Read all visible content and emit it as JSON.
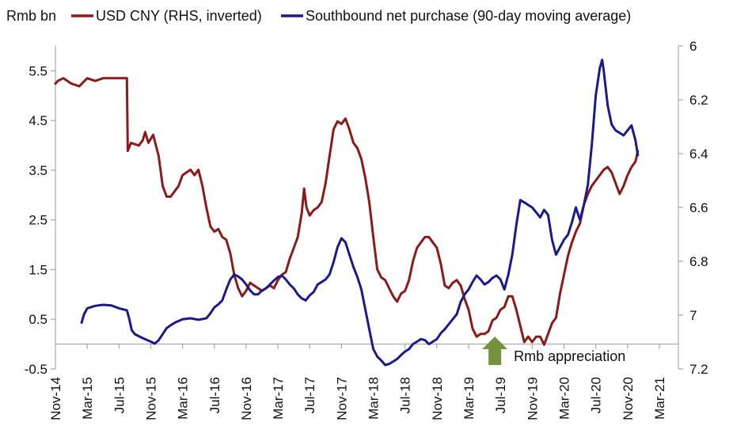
{
  "chart_data": {
    "type": "line",
    "unit_label": "Rmb bn",
    "legend": [
      {
        "name": "USD CNY (RHS, inverted)",
        "color": "#8b1a1a"
      },
      {
        "name": "Southbound net purchase (90-day moving average)",
        "color": "#1a1a8c"
      }
    ],
    "legend_placement": "top",
    "grid": false,
    "x_ticks": [
      "Nov-14",
      "Mar-15",
      "Jul-15",
      "Nov-15",
      "Mar-16",
      "Jul-16",
      "Nov-16",
      "Mar-17",
      "Jul-17",
      "Nov-17",
      "Mar-18",
      "Jul-18",
      "Nov-18",
      "Mar-19",
      "Jul-19",
      "Nov-19",
      "Mar-20",
      "Jul-20",
      "Nov-20",
      "Mar-21"
    ],
    "y_left": {
      "ylim": [
        -0.5,
        6.0
      ],
      "ticks": [
        {
          "value": 5.5,
          "label": "5.5"
        },
        {
          "value": 4.5,
          "label": "4.5"
        },
        {
          "value": 3.5,
          "label": "3.5"
        },
        {
          "value": 2.5,
          "label": "2.5"
        },
        {
          "value": 1.5,
          "label": "1.5"
        },
        {
          "value": 0.5,
          "label": "0.5"
        },
        {
          "value": -0.5,
          "label": "-0.5",
          "color": "#d62020"
        }
      ]
    },
    "y_right": {
      "ylim": [
        6.0,
        7.2
      ],
      "inverted": true,
      "ticks": [
        {
          "value": 6.0,
          "label": "6"
        },
        {
          "value": 6.2,
          "label": "6.2"
        },
        {
          "value": 6.4,
          "label": "6.4"
        },
        {
          "value": 6.6,
          "label": "6.6"
        },
        {
          "value": 6.8,
          "label": "6.8"
        },
        {
          "value": 7.0,
          "label": "7"
        },
        {
          "value": 7.2,
          "label": "7.2"
        }
      ]
    },
    "series": [
      {
        "name": "USD CNY (RHS, inverted)",
        "axis": "right",
        "color": "#8b1a1a",
        "points": [
          [
            0.0,
            6.14
          ],
          [
            0.3,
            6.13
          ],
          [
            1.0,
            6.12
          ],
          [
            2.0,
            6.14
          ],
          [
            3.0,
            6.15
          ],
          [
            4.0,
            6.12
          ],
          [
            5.0,
            6.13
          ],
          [
            6.0,
            6.12
          ],
          [
            8.0,
            6.12
          ],
          [
            9.0,
            6.12
          ],
          [
            9.1,
            6.39
          ],
          [
            9.5,
            6.36
          ],
          [
            10.5,
            6.37
          ],
          [
            11.0,
            6.35
          ],
          [
            11.3,
            6.32
          ],
          [
            11.7,
            6.36
          ],
          [
            12.3,
            6.33
          ],
          [
            13.0,
            6.41
          ],
          [
            13.5,
            6.52
          ],
          [
            14.0,
            6.56
          ],
          [
            14.5,
            6.56
          ],
          [
            15.0,
            6.54
          ],
          [
            15.5,
            6.52
          ],
          [
            16.0,
            6.48
          ],
          [
            16.5,
            6.47
          ],
          [
            17.0,
            6.46
          ],
          [
            17.5,
            6.48
          ],
          [
            18.0,
            6.46
          ],
          [
            18.5,
            6.52
          ],
          [
            19.0,
            6.6
          ],
          [
            19.5,
            6.67
          ],
          [
            20.0,
            6.69
          ],
          [
            20.5,
            6.68
          ],
          [
            21.0,
            6.71
          ],
          [
            21.5,
            6.72
          ],
          [
            22.0,
            6.77
          ],
          [
            22.5,
            6.85
          ],
          [
            23.0,
            6.9
          ],
          [
            23.5,
            6.93
          ],
          [
            24.0,
            6.91
          ],
          [
            24.5,
            6.88
          ],
          [
            25.0,
            6.89
          ],
          [
            25.5,
            6.9
          ],
          [
            26.0,
            6.91
          ],
          [
            26.5,
            6.9
          ],
          [
            27.0,
            6.89
          ],
          [
            27.5,
            6.9
          ],
          [
            28.0,
            6.87
          ],
          [
            28.5,
            6.85
          ],
          [
            29.0,
            6.84
          ],
          [
            29.5,
            6.79
          ],
          [
            30.0,
            6.75
          ],
          [
            30.5,
            6.71
          ],
          [
            31.0,
            6.62
          ],
          [
            31.3,
            6.53
          ],
          [
            31.6,
            6.6
          ],
          [
            32.0,
            6.63
          ],
          [
            32.5,
            6.61
          ],
          [
            33.0,
            6.6
          ],
          [
            33.5,
            6.58
          ],
          [
            34.0,
            6.51
          ],
          [
            34.5,
            6.41
          ],
          [
            35.0,
            6.31
          ],
          [
            35.5,
            6.28
          ],
          [
            36.0,
            6.29
          ],
          [
            36.5,
            6.27
          ],
          [
            37.0,
            6.31
          ],
          [
            37.5,
            6.36
          ],
          [
            38.0,
            6.38
          ],
          [
            38.5,
            6.42
          ],
          [
            39.0,
            6.49
          ],
          [
            39.5,
            6.58
          ],
          [
            40.0,
            6.71
          ],
          [
            40.5,
            6.83
          ],
          [
            41.0,
            6.86
          ],
          [
            41.5,
            6.87
          ],
          [
            42.0,
            6.9
          ],
          [
            42.5,
            6.93
          ],
          [
            43.0,
            6.95
          ],
          [
            43.5,
            6.92
          ],
          [
            44.0,
            6.91
          ],
          [
            44.5,
            6.87
          ],
          [
            45.0,
            6.8
          ],
          [
            45.5,
            6.75
          ],
          [
            46.0,
            6.73
          ],
          [
            46.5,
            6.71
          ],
          [
            47.0,
            6.71
          ],
          [
            47.5,
            6.73
          ],
          [
            48.0,
            6.75
          ],
          [
            48.5,
            6.81
          ],
          [
            49.0,
            6.89
          ],
          [
            49.5,
            6.9
          ],
          [
            50.0,
            6.88
          ],
          [
            50.5,
            6.87
          ],
          [
            51.0,
            6.89
          ],
          [
            51.5,
            6.94
          ],
          [
            52.0,
            6.98
          ],
          [
            52.5,
            7.05
          ],
          [
            53.0,
            7.08
          ],
          [
            53.5,
            7.07
          ],
          [
            54.0,
            7.07
          ],
          [
            54.5,
            7.06
          ],
          [
            55.0,
            7.02
          ],
          [
            55.5,
            7.01
          ],
          [
            56.0,
            6.98
          ],
          [
            56.5,
            6.97
          ],
          [
            57.0,
            6.93
          ],
          [
            57.5,
            6.93
          ],
          [
            58.0,
            6.98
          ],
          [
            58.5,
            7.04
          ],
          [
            59.0,
            7.1
          ],
          [
            59.5,
            7.08
          ],
          [
            60.0,
            7.1
          ],
          [
            60.5,
            7.08
          ],
          [
            61.0,
            7.08
          ],
          [
            61.5,
            7.11
          ],
          [
            62.0,
            7.07
          ],
          [
            62.5,
            7.03
          ],
          [
            63.0,
            7.01
          ],
          [
            63.5,
            6.92
          ],
          [
            64.0,
            6.85
          ],
          [
            64.5,
            6.78
          ],
          [
            65.0,
            6.73
          ],
          [
            65.5,
            6.69
          ],
          [
            66.0,
            6.66
          ],
          [
            66.5,
            6.59
          ],
          [
            67.0,
            6.55
          ],
          [
            67.5,
            6.52
          ],
          [
            68.0,
            6.5
          ],
          [
            68.5,
            6.48
          ],
          [
            69.0,
            6.46
          ],
          [
            69.5,
            6.45
          ],
          [
            70.0,
            6.47
          ],
          [
            70.5,
            6.51
          ],
          [
            71.0,
            6.55
          ],
          [
            71.5,
            6.52
          ],
          [
            72.0,
            6.48
          ],
          [
            72.5,
            6.45
          ],
          [
            73.0,
            6.43
          ],
          [
            73.3,
            6.39
          ]
        ]
      },
      {
        "name": "Southbound net purchase (90-day moving average)",
        "axis": "left",
        "color": "#1a1a8c",
        "points": [
          [
            3.3,
            0.43
          ],
          [
            3.6,
            0.6
          ],
          [
            4.0,
            0.72
          ],
          [
            5.0,
            0.77
          ],
          [
            6.0,
            0.79
          ],
          [
            7.0,
            0.78
          ],
          [
            8.0,
            0.72
          ],
          [
            8.5,
            0.7
          ],
          [
            9.0,
            0.68
          ],
          [
            9.3,
            0.5
          ],
          [
            9.6,
            0.28
          ],
          [
            10.0,
            0.2
          ],
          [
            11.0,
            0.12
          ],
          [
            12.0,
            0.05
          ],
          [
            12.5,
            0.01
          ],
          [
            13.0,
            0.08
          ],
          [
            13.5,
            0.2
          ],
          [
            14.0,
            0.32
          ],
          [
            14.5,
            0.38
          ],
          [
            15.0,
            0.43
          ],
          [
            16.0,
            0.5
          ],
          [
            17.0,
            0.52
          ],
          [
            18.0,
            0.49
          ],
          [
            19.0,
            0.52
          ],
          [
            19.5,
            0.62
          ],
          [
            20.0,
            0.74
          ],
          [
            20.5,
            0.8
          ],
          [
            21.0,
            0.88
          ],
          [
            21.5,
            1.1
          ],
          [
            22.0,
            1.3
          ],
          [
            22.5,
            1.4
          ],
          [
            23.0,
            1.36
          ],
          [
            23.5,
            1.3
          ],
          [
            24.0,
            1.2
          ],
          [
            24.5,
            1.08
          ],
          [
            25.0,
            1.0
          ],
          [
            25.5,
            1.0
          ],
          [
            26.0,
            1.08
          ],
          [
            26.5,
            1.12
          ],
          [
            27.0,
            1.2
          ],
          [
            27.5,
            1.28
          ],
          [
            28.0,
            1.35
          ],
          [
            28.5,
            1.38
          ],
          [
            29.0,
            1.3
          ],
          [
            29.5,
            1.2
          ],
          [
            30.0,
            1.12
          ],
          [
            30.5,
            1.0
          ],
          [
            31.0,
            0.92
          ],
          [
            31.5,
            0.88
          ],
          [
            32.0,
            0.98
          ],
          [
            32.5,
            1.05
          ],
          [
            33.0,
            1.2
          ],
          [
            33.5,
            1.25
          ],
          [
            34.0,
            1.3
          ],
          [
            34.5,
            1.4
          ],
          [
            35.0,
            1.65
          ],
          [
            35.5,
            1.95
          ],
          [
            36.0,
            2.13
          ],
          [
            36.5,
            2.05
          ],
          [
            37.0,
            1.8
          ],
          [
            37.5,
            1.55
          ],
          [
            38.0,
            1.35
          ],
          [
            38.5,
            1.1
          ],
          [
            39.0,
            0.7
          ],
          [
            39.5,
            0.3
          ],
          [
            40.0,
            -0.1
          ],
          [
            40.5,
            -0.25
          ],
          [
            41.0,
            -0.33
          ],
          [
            41.5,
            -0.42
          ],
          [
            42.0,
            -0.4
          ],
          [
            42.5,
            -0.35
          ],
          [
            43.0,
            -0.3
          ],
          [
            43.5,
            -0.22
          ],
          [
            44.0,
            -0.15
          ],
          [
            44.5,
            -0.1
          ],
          [
            45.0,
            0.0
          ],
          [
            45.5,
            0.05
          ],
          [
            46.0,
            0.1
          ],
          [
            46.5,
            0.08
          ],
          [
            47.0,
            0.0
          ],
          [
            47.5,
            0.05
          ],
          [
            48.0,
            0.1
          ],
          [
            48.5,
            0.22
          ],
          [
            49.0,
            0.3
          ],
          [
            49.5,
            0.4
          ],
          [
            50.0,
            0.5
          ],
          [
            50.5,
            0.6
          ],
          [
            51.0,
            0.85
          ],
          [
            51.5,
            1.0
          ],
          [
            52.0,
            1.1
          ],
          [
            52.5,
            1.25
          ],
          [
            53.0,
            1.38
          ],
          [
            53.5,
            1.3
          ],
          [
            54.0,
            1.2
          ],
          [
            54.5,
            1.25
          ],
          [
            55.0,
            1.33
          ],
          [
            55.5,
            1.38
          ],
          [
            56.0,
            1.3
          ],
          [
            56.5,
            1.1
          ],
          [
            57.0,
            1.4
          ],
          [
            57.5,
            1.8
          ],
          [
            58.0,
            2.4
          ],
          [
            58.5,
            2.9
          ],
          [
            59.0,
            2.85
          ],
          [
            59.5,
            2.8
          ],
          [
            60.0,
            2.75
          ],
          [
            60.5,
            2.65
          ],
          [
            61.0,
            2.55
          ],
          [
            61.5,
            2.7
          ],
          [
            62.0,
            2.6
          ],
          [
            62.5,
            2.1
          ],
          [
            63.0,
            1.8
          ],
          [
            63.5,
            1.95
          ],
          [
            64.0,
            2.1
          ],
          [
            64.5,
            2.2
          ],
          [
            65.0,
            2.45
          ],
          [
            65.5,
            2.75
          ],
          [
            66.0,
            2.5
          ],
          [
            66.5,
            2.8
          ],
          [
            67.0,
            3.2
          ],
          [
            67.5,
            4.0
          ],
          [
            68.0,
            5.0
          ],
          [
            68.5,
            5.55
          ],
          [
            68.8,
            5.72
          ],
          [
            69.0,
            5.5
          ],
          [
            69.5,
            4.8
          ],
          [
            70.0,
            4.42
          ],
          [
            70.5,
            4.3
          ],
          [
            71.0,
            4.25
          ],
          [
            71.5,
            4.2
          ],
          [
            72.0,
            4.3
          ],
          [
            72.5,
            4.4
          ],
          [
            73.0,
            4.1
          ],
          [
            73.3,
            3.8
          ]
        ]
      }
    ],
    "annotation": {
      "text": "Rmb appreciation",
      "arrow_color": "#76923c",
      "x_index": 55.3
    }
  }
}
